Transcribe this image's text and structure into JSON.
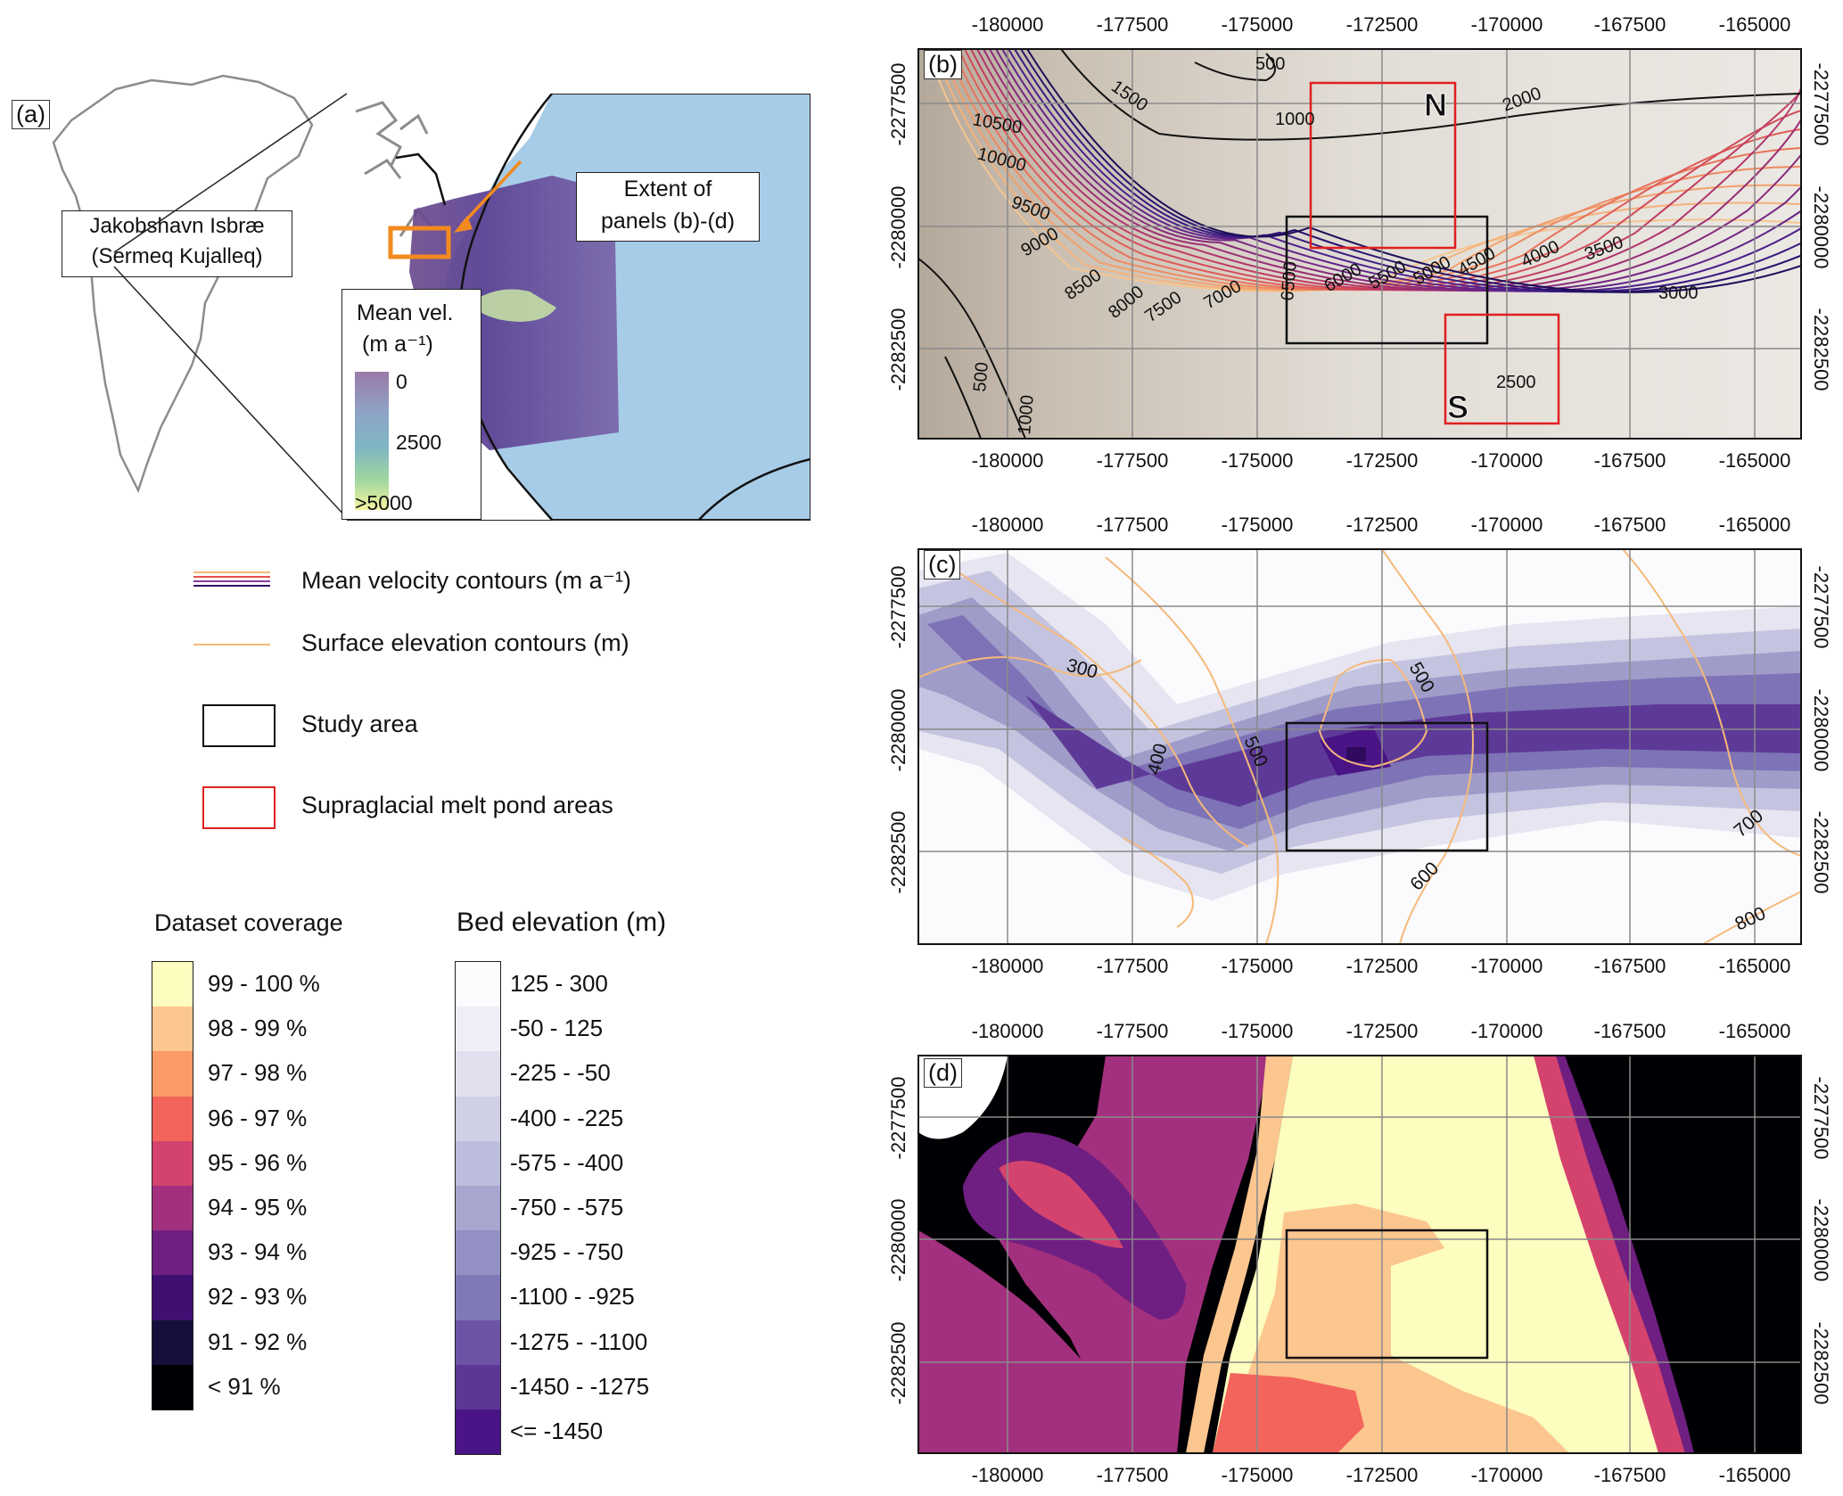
{
  "panels": {
    "a": "(a)",
    "b": "(b)",
    "c": "(c)",
    "d": "(d)"
  },
  "overview": {
    "callout_line1": "Jakobshavn Isbræ",
    "callout_line2": "(Sermeq Kujalleq)",
    "extent_line1": "Extent of",
    "extent_line2": "panels (b)-(d)",
    "velocity_legend_title": "Mean vel.",
    "velocity_legend_unit": "(m a⁻¹)",
    "velocity_legend_ticks": [
      "0",
      "2500",
      ">5000"
    ],
    "colors": {
      "ocean": "#a7cce8",
      "land_outline": "#8c8c8c",
      "extent_box": "#f28a1f"
    }
  },
  "x_ticks": [
    "-180000",
    "-177500",
    "-175000",
    "-172500",
    "-170000",
    "-167500",
    "-165000"
  ],
  "y_ticks": [
    "-2277500",
    "-2280000",
    "-2282500"
  ],
  "panel_b_labels": {
    "velocity_contours": [
      "10500",
      "10000",
      "9500",
      "9000",
      "8500",
      "8000",
      "7500",
      "7000",
      "6500",
      "6000",
      "5500",
      "5000",
      "4500",
      "4000",
      "3500",
      "3000",
      "2500"
    ],
    "elevation_contours": [
      "500",
      "1000",
      "1500",
      "2000",
      "500",
      "1000"
    ],
    "melt_pond_north": "N",
    "melt_pond_south": "S"
  },
  "panel_c_labels": {
    "elevation_contours": [
      "300",
      "400",
      "500",
      "500",
      "600",
      "700",
      "800"
    ]
  },
  "legend": {
    "velocity_contours": "Mean velocity contours (m a⁻¹)",
    "elevation_contours": "Surface elevation contours (m)",
    "study_area": "Study area",
    "melt_pond_areas": "Supraglacial melt pond areas"
  },
  "dataset_coverage": {
    "title": "Dataset coverage",
    "classes": [
      {
        "label": "99 - 100 %",
        "color": "#fcfdbf"
      },
      {
        "label": "98 - 99 %",
        "color": "#fcc68f"
      },
      {
        "label": "97 - 98 %",
        "color": "#fb9a66"
      },
      {
        "label": "96 - 97 %",
        "color": "#f3645c"
      },
      {
        "label": "95 - 96 %",
        "color": "#d4436e"
      },
      {
        "label": "94 - 95 %",
        "color": "#a3307e"
      },
      {
        "label": "93 - 94 %",
        "color": "#6f1f81"
      },
      {
        "label": "92 - 93 %",
        "color": "#3f0f72"
      },
      {
        "label": "91 - 92 %",
        "color": "#160e3b"
      },
      {
        "label": "< 91 %",
        "color": "#000004"
      }
    ]
  },
  "bed_elevation": {
    "title": "Bed elevation (m)",
    "classes": [
      {
        "label": "125 - 300",
        "color": "#fcfbfd"
      },
      {
        "label": "-50 - 125",
        "color": "#efedf5"
      },
      {
        "label": "-225 - -50",
        "color": "#e1e0ef"
      },
      {
        "label": "-400 - -225",
        "color": "#cfcfe6"
      },
      {
        "label": "-575 - -400",
        "color": "#bcbddc"
      },
      {
        "label": "-750 - -575",
        "color": "#a8a6cf"
      },
      {
        "label": "-925 - -750",
        "color": "#9391c3"
      },
      {
        "label": "-1100 - -925",
        "color": "#7f79b8"
      },
      {
        "label": "-1275 - -1100",
        "color": "#6d53a6"
      },
      {
        "label": "-1450 - -1275",
        "color": "#5d3796"
      },
      {
        "label": "<= -1450",
        "color": "#4a1486"
      }
    ]
  }
}
